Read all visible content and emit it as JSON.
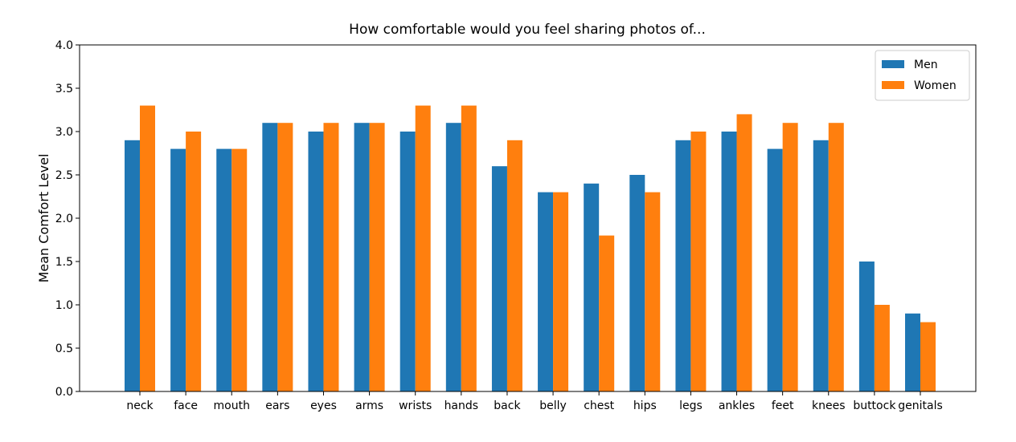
{
  "chart_data": {
    "type": "bar",
    "title": "How comfortable would you feel sharing photos of...",
    "y_label": "Mean Comfort Level",
    "categories": [
      "neck",
      "face",
      "mouth",
      "ears",
      "eyes",
      "arms",
      "wrists",
      "hands",
      "back",
      "belly",
      "chest",
      "hips",
      "legs",
      "ankles",
      "feet",
      "knees",
      "buttock",
      "genitals"
    ],
    "series": [
      {
        "name": "Men",
        "color": "#1f77b4",
        "values": [
          2.9,
          2.8,
          2.8,
          3.1,
          3.0,
          3.1,
          3.0,
          3.1,
          2.6,
          2.3,
          2.4,
          2.5,
          2.9,
          3.0,
          2.8,
          2.9,
          1.5,
          0.9
        ]
      },
      {
        "name": "Women",
        "color": "#ff7f0e",
        "values": [
          3.3,
          3.0,
          2.8,
          3.1,
          3.1,
          3.1,
          3.3,
          3.3,
          2.9,
          2.3,
          1.8,
          2.3,
          3.0,
          3.2,
          3.1,
          3.1,
          1.0,
          0.8
        ]
      }
    ],
    "ylim": [
      0,
      4
    ],
    "yticks": [
      {
        "value": 0,
        "label": "0.0"
      },
      0.5,
      {
        "value": 1,
        "label": "1.0"
      },
      1.5,
      {
        "value": 2,
        "label": "2.0"
      },
      2.5,
      {
        "value": 3,
        "label": "3.0"
      },
      3.5,
      {
        "value": 4,
        "label": "4.0"
      }
    ],
    "legend": "upper right",
    "grid": false
  }
}
